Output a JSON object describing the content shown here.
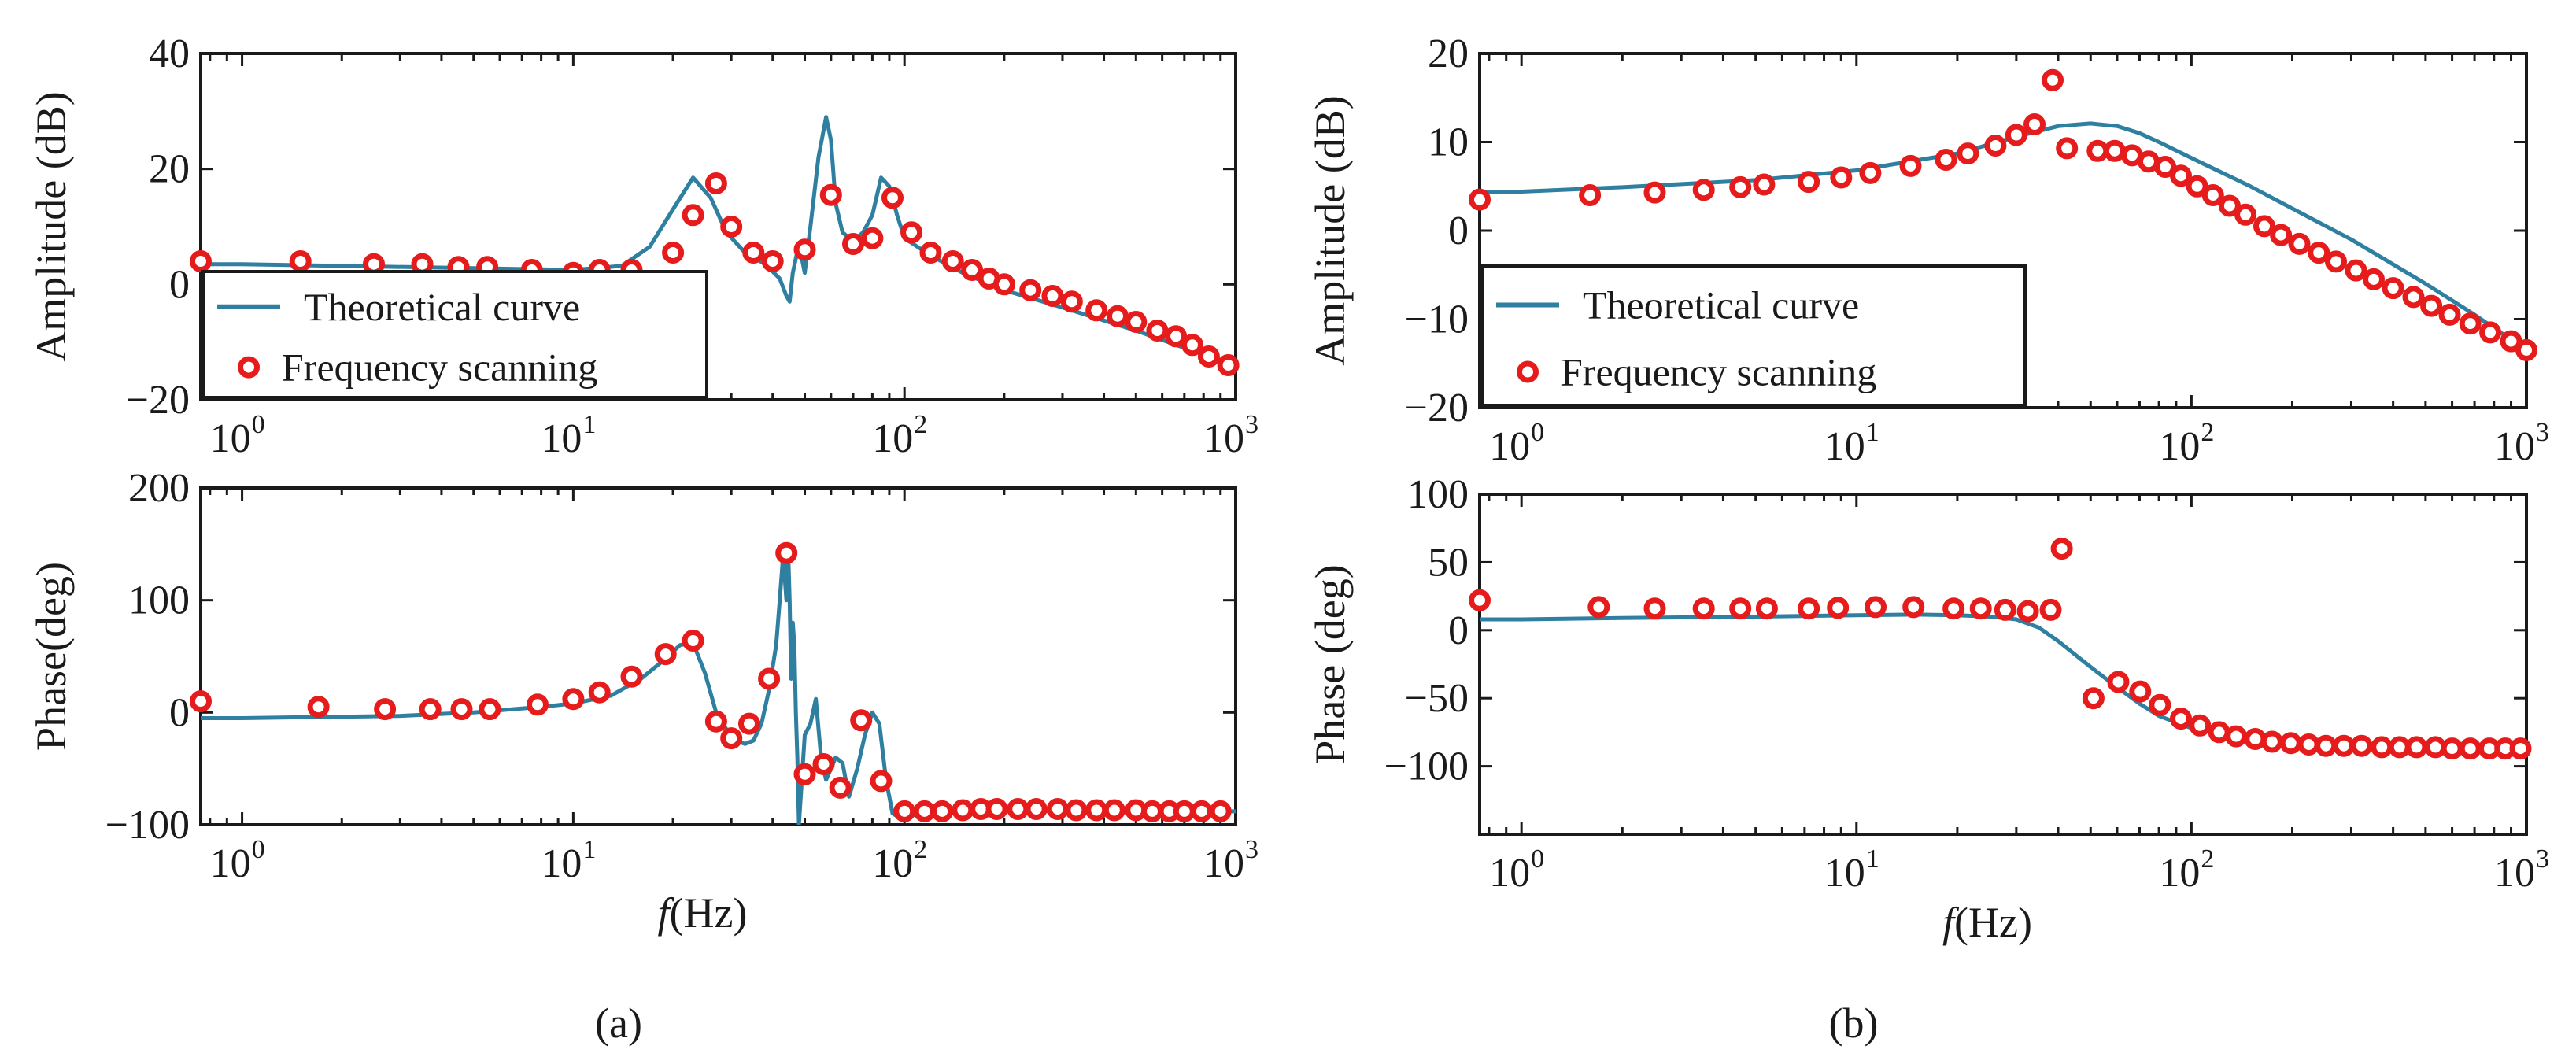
{
  "figure": {
    "captions": {
      "a": "(a)",
      "b": "(b)"
    },
    "xlabel_italic": "f",
    "xlabel_unit": "(Hz)"
  },
  "colors": {
    "curve": "#2e7fa0",
    "marker": "#e61b1b",
    "axis": "#1a1a1a"
  },
  "chart_data": [
    {
      "id": "a-amp",
      "type": "line",
      "panel": "a",
      "ylabel": "Amplitude (dB)",
      "xscale": "log",
      "xlim": [
        0.75,
        1000
      ],
      "ylim": [
        -20,
        40
      ],
      "xticks": [
        1,
        10,
        100,
        1000
      ],
      "xtick_labels": [
        {
          "base": "10",
          "exp": "0"
        },
        {
          "base": "10",
          "exp": "1"
        },
        {
          "base": "10",
          "exp": "2"
        },
        {
          "base": "10",
          "exp": "3"
        }
      ],
      "yticks": [
        -20,
        0,
        20,
        40
      ],
      "ytick_labels": [
        "−20",
        "0",
        "20",
        "40"
      ],
      "legend": {
        "position": "bottom-left",
        "entries": [
          "Theoretical curve",
          "Frequency scanning"
        ]
      },
      "series": [
        {
          "name": "Theoretical curve",
          "style": "line",
          "x": [
            0.75,
            1,
            2,
            5,
            10,
            14,
            17,
            20,
            23,
            26,
            29,
            33,
            38,
            42,
            44,
            45,
            46,
            48,
            50,
            52,
            55,
            58,
            60,
            62,
            65,
            70,
            75,
            80,
            85,
            90,
            95,
            100,
            120,
            150,
            200,
            300,
            500,
            700,
            1000
          ],
          "y": [
            3.5,
            3.5,
            3.2,
            2.8,
            2.5,
            3.2,
            6.5,
            13,
            18.5,
            15,
            9,
            5.5,
            3.5,
            1,
            -2,
            -3,
            2,
            7,
            2,
            10,
            22,
            29,
            25,
            14,
            9,
            7.5,
            9,
            12,
            18.5,
            17,
            12,
            8,
            5,
            2,
            -1,
            -4,
            -8,
            -11,
            -14
          ]
        },
        {
          "name": "Frequency scanning",
          "style": "marker",
          "x": [
            0.75,
            1.5,
            2.5,
            3.5,
            4.5,
            5.5,
            7.5,
            10,
            12,
            15,
            20,
            23,
            27,
            30,
            35,
            40,
            50,
            60,
            70,
            80,
            92,
            105,
            120,
            140,
            160,
            180,
            200,
            240,
            280,
            320,
            380,
            440,
            500,
            580,
            660,
            740,
            830,
            950
          ],
          "y": [
            4,
            4,
            3.5,
            3.5,
            3,
            3,
            2.5,
            2,
            2.5,
            2.5,
            5.5,
            12,
            17.5,
            10,
            5.5,
            4,
            6,
            15.5,
            7,
            8,
            15,
            9,
            5.5,
            4,
            2.5,
            1,
            0,
            -1,
            -2,
            -3,
            -4.5,
            -5.5,
            -6.5,
            -8,
            -9,
            -10.5,
            -12.5,
            -14
          ]
        }
      ]
    },
    {
      "id": "a-phase",
      "type": "line",
      "panel": "a",
      "ylabel": "Phase(deg)",
      "xscale": "log",
      "xlim": [
        0.75,
        1000
      ],
      "ylim": [
        -100,
        200
      ],
      "xticks": [
        1,
        10,
        100,
        1000
      ],
      "xtick_labels": [
        {
          "base": "10",
          "exp": "0"
        },
        {
          "base": "10",
          "exp": "1"
        },
        {
          "base": "10",
          "exp": "2"
        },
        {
          "base": "10",
          "exp": "3"
        }
      ],
      "yticks": [
        -100,
        0,
        100,
        200
      ],
      "ytick_labels": [
        "−100",
        "0",
        "100",
        "200"
      ],
      "series": [
        {
          "name": "Theoretical curve",
          "style": "line",
          "x": [
            0.75,
            1,
            3,
            5,
            8,
            10,
            13,
            16,
            19,
            21,
            23,
            25,
            27,
            29,
            31,
            33,
            35,
            37,
            39,
            41,
            42,
            43,
            44,
            44.5,
            45,
            45.5,
            46,
            46.5,
            47,
            47.5,
            48,
            49,
            50,
            52,
            54,
            56,
            58,
            60,
            62,
            65,
            68,
            72,
            76,
            80,
            84,
            88,
            92,
            96,
            100,
            120,
            150,
            200,
            300,
            500,
            1000
          ],
          "y": [
            -5,
            -5,
            -3,
            0,
            5,
            8,
            15,
            30,
            48,
            60,
            62,
            35,
            0,
            -15,
            -25,
            -28,
            -25,
            -10,
            20,
            60,
            100,
            140,
            100,
            150,
            100,
            30,
            80,
            60,
            0,
            -40,
            -100,
            -60,
            -20,
            -10,
            12,
            -40,
            -60,
            -50,
            -40,
            -45,
            -75,
            -50,
            -20,
            0,
            -10,
            -60,
            -90,
            -93,
            -92,
            -90,
            -89,
            -88,
            -88,
            -88,
            -88
          ]
        },
        {
          "name": "Frequency scanning",
          "style": "marker",
          "x": [
            0.75,
            1.7,
            2.7,
            3.7,
            4.6,
            5.6,
            7.8,
            10,
            12,
            15,
            19,
            23,
            27,
            30,
            34,
            39,
            44,
            50,
            57,
            64,
            74,
            85,
            100,
            115,
            130,
            150,
            170,
            190,
            220,
            250,
            290,
            330,
            380,
            430,
            500,
            560,
            630,
            700,
            790,
            900
          ],
          "y": [
            10,
            5,
            3,
            3,
            3,
            3,
            7,
            12,
            18,
            32,
            52,
            64,
            -8,
            -23,
            -10,
            30,
            142,
            -55,
            -46,
            -67,
            -7,
            -61,
            -88,
            -88,
            -88,
            -87,
            -86,
            -86,
            -86,
            -86,
            -86,
            -87,
            -87,
            -87,
            -87,
            -88,
            -88,
            -88,
            -88,
            -88
          ]
        }
      ]
    },
    {
      "id": "b-amp",
      "type": "line",
      "panel": "b",
      "ylabel": "Amplitude (dB)",
      "xscale": "log",
      "xlim": [
        0.75,
        1000
      ],
      "ylim": [
        -20,
        20
      ],
      "xticks": [
        1,
        10,
        100,
        1000
      ],
      "xtick_labels": [
        {
          "base": "10",
          "exp": "0"
        },
        {
          "base": "10",
          "exp": "1"
        },
        {
          "base": "10",
          "exp": "2"
        },
        {
          "base": "10",
          "exp": "3"
        }
      ],
      "yticks": [
        -20,
        -10,
        0,
        10,
        20
      ],
      "ytick_labels": [
        "−20",
        "−10",
        "0",
        "10",
        "20"
      ],
      "legend": {
        "position": "bottom-left",
        "entries": [
          "Theoretical curve",
          "Frequency scanning"
        ]
      },
      "series": [
        {
          "name": "Theoretical curve",
          "style": "line",
          "x": [
            0.75,
            1,
            2,
            5,
            10,
            20,
            30,
            40,
            50,
            60,
            70,
            80,
            100,
            150,
            200,
            300,
            500,
            700,
            1000
          ],
          "y": [
            4.3,
            4.4,
            4.9,
            5.7,
            6.8,
            8.7,
            10.6,
            11.8,
            12.1,
            11.8,
            11,
            10,
            8.2,
            5,
            2.5,
            -1,
            -6,
            -9.5,
            -13.5
          ]
        },
        {
          "name": "Frequency scanning",
          "style": "marker",
          "x": [
            0.75,
            1.6,
            2.5,
            3.5,
            4.5,
            5.3,
            7.2,
            9,
            11,
            14.5,
            18.5,
            21.5,
            26,
            30,
            34,
            38.5,
            42.5,
            52.5,
            59,
            66.5,
            74.5,
            83.5,
            93,
            104,
            116,
            130,
            145,
            165,
            185,
            210,
            240,
            270,
            310,
            350,
            400,
            460,
            520,
            590,
            680,
            780,
            900,
            1000
          ],
          "y": [
            3.5,
            4,
            4.3,
            4.6,
            4.9,
            5.2,
            5.5,
            6,
            6.5,
            7.3,
            8,
            8.7,
            9.6,
            10.8,
            12,
            17,
            9.3,
            9,
            9,
            8.5,
            7.8,
            7.2,
            6.2,
            5,
            4,
            2.8,
            1.8,
            0.5,
            -0.5,
            -1.5,
            -2.5,
            -3.5,
            -4.5,
            -5.5,
            -6.5,
            -7.5,
            -8.5,
            -9.5,
            -10.5,
            -11.5,
            -12.5,
            -13.5
          ]
        }
      ]
    },
    {
      "id": "b-phase",
      "type": "line",
      "panel": "b",
      "ylabel": "Phase (deg)",
      "xscale": "log",
      "xlim": [
        0.75,
        1000
      ],
      "ylim": [
        -150,
        100
      ],
      "xticks": [
        1,
        10,
        100,
        1000
      ],
      "xtick_labels": [
        {
          "base": "10",
          "exp": "0"
        },
        {
          "base": "10",
          "exp": "1"
        },
        {
          "base": "10",
          "exp": "2"
        },
        {
          "base": "10",
          "exp": "3"
        }
      ],
      "yticks": [
        -100,
        -50,
        0,
        50,
        100
      ],
      "ytick_labels": [
        "−100",
        "−50",
        "0",
        "50",
        "100"
      ],
      "series": [
        {
          "name": "Theoretical curve",
          "style": "line",
          "x": [
            0.75,
            1,
            2,
            5,
            10,
            15,
            20,
            25,
            30,
            35,
            40,
            45,
            50,
            60,
            70,
            80,
            100,
            150,
            200,
            300,
            500,
            1000
          ],
          "y": [
            8,
            8,
            9,
            10,
            11,
            11.5,
            11,
            10,
            8,
            2,
            -8,
            -18,
            -27,
            -42,
            -54,
            -63,
            -72,
            -80,
            -84,
            -86,
            -88,
            -89
          ]
        },
        {
          "name": "Frequency scanning",
          "style": "marker",
          "x": [
            0.75,
            1.7,
            2.5,
            3.5,
            4.5,
            5.4,
            7.2,
            8.8,
            11.4,
            14.8,
            19.5,
            23.5,
            27.8,
            32.5,
            38,
            41,
            51,
            60.5,
            70.3,
            80.5,
            93,
            106,
            121,
            136,
            155,
            174,
            198,
            224,
            252,
            285,
            322,
            370,
            418,
            470,
            535,
            600,
            680,
            775,
            865,
            960
          ],
          "y": [
            22,
            17,
            16,
            16,
            16,
            16,
            16,
            16.5,
            17,
            17,
            16,
            16,
            15,
            14,
            15,
            60,
            -50,
            -38,
            -45,
            -55,
            -65,
            -70,
            -75,
            -78,
            -80,
            -82,
            -83,
            -84,
            -85,
            -85,
            -85,
            -86,
            -86,
            -86,
            -86,
            -87,
            -87,
            -87,
            -87,
            -87
          ]
        }
      ]
    }
  ]
}
